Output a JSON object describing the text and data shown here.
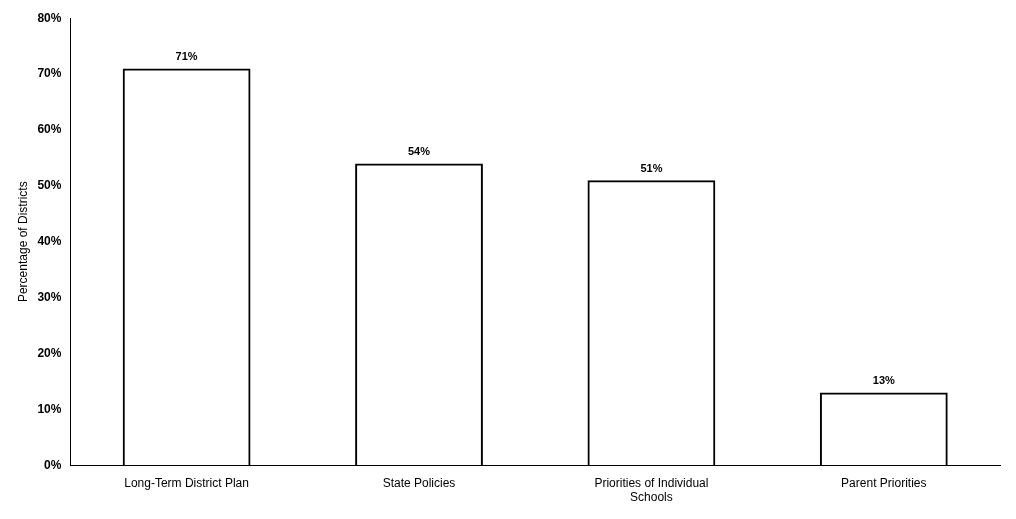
{
  "chart_data": {
    "type": "bar",
    "ylabel": "Percentage of Districts",
    "categories": [
      "Long-Term District Plan",
      "State Policies",
      "Priorities of Individual Schools",
      "Parent Priorities"
    ],
    "values": [
      71,
      54,
      51,
      13
    ],
    "colors": [
      "#000000",
      "#000000",
      "#000000",
      "#000000"
    ],
    "value_labels": [
      "71%",
      "54%",
      "51%",
      "13%"
    ],
    "ylim": [
      0,
      80
    ],
    "yticks": [
      {
        "value": 0,
        "label": "0%"
      },
      {
        "value": 10,
        "label": "10%"
      },
      {
        "value": 20,
        "label": "20%"
      },
      {
        "value": 30,
        "label": "30%"
      },
      {
        "value": 40,
        "label": "40%"
      },
      {
        "value": 50,
        "label": "50%"
      },
      {
        "value": 60,
        "label": "60%"
      },
      {
        "value": 70,
        "label": "70%"
      },
      {
        "value": 80,
        "label": "80%"
      }
    ],
    "grid": false,
    "legend": false
  }
}
